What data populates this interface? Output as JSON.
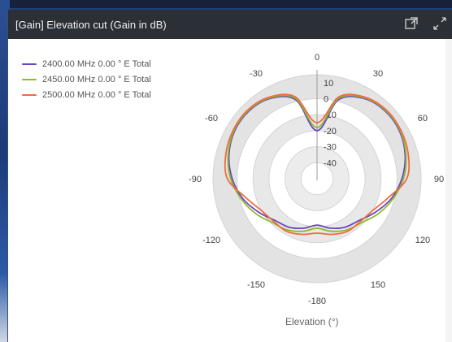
{
  "panel": {
    "title": "[Gain] Elevation cut (Gain in dB)",
    "popout_icon": "popout-window-icon",
    "expand_icon": "expand-icon"
  },
  "chart_data": {
    "type": "polar-line",
    "title": "[Gain] Elevation cut (Gain in dB)",
    "xlabel": "Elevation (°)",
    "angle_ticks": [
      0,
      30,
      60,
      90,
      120,
      150,
      -180,
      -150,
      -120,
      -90,
      -60,
      -30
    ],
    "radial_ticks": [
      10,
      0,
      -10,
      -20,
      -30,
      -40
    ],
    "radial_range": [
      -50,
      15
    ],
    "angles": [
      0,
      15,
      30,
      45,
      60,
      75,
      90,
      105,
      120,
      135,
      150,
      165,
      180,
      195,
      210,
      225,
      240,
      255,
      270,
      285,
      300,
      315,
      330,
      345
    ],
    "series": [
      {
        "name": "2400.00 MHz 0.00 ° E Total",
        "color": "#6a45c2",
        "values": [
          -20,
          1,
          8,
          10,
          9.5,
          7,
          3,
          -2,
          -8,
          -13,
          -15,
          -18,
          -21,
          -18,
          -15,
          -13,
          -8,
          -2,
          3,
          7,
          9.5,
          10,
          8,
          1
        ]
      },
      {
        "name": "2450.00 MHz 0.00 ° E Total",
        "color": "#8cba2b",
        "values": [
          -18,
          2,
          8.5,
          10.5,
          10,
          7.5,
          4,
          -1,
          -6,
          -11,
          -13,
          -16,
          -19,
          -16,
          -13,
          -11,
          -6,
          -1,
          4,
          7.5,
          10,
          10.5,
          8.5,
          2
        ]
      },
      {
        "name": "2500.00 MHz 0.00 ° E Total",
        "color": "#f06a3e",
        "values": [
          -15,
          3,
          9,
          11,
          10.5,
          9,
          6,
          -4,
          -10,
          -12,
          -12,
          -14,
          -16,
          -14,
          -12,
          -12,
          -10,
          -4,
          6,
          9,
          10.5,
          11,
          9,
          3
        ]
      }
    ],
    "legend_position": "top-left",
    "grid": true
  }
}
